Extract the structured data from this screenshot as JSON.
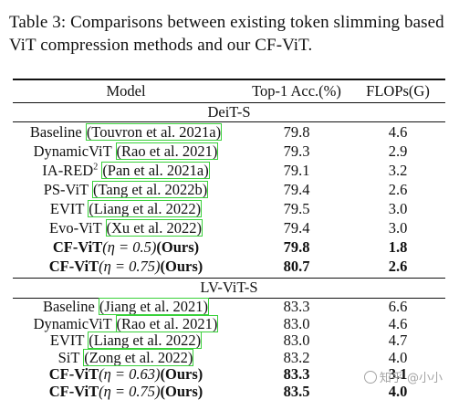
{
  "caption": "Table 3:  Comparisons between existing token slimming based ViT compression methods and our CF-ViT.",
  "headers": {
    "model": "Model",
    "acc": "Top-1 Acc.(%)",
    "flops": "FLOPs(G)"
  },
  "sections": {
    "deit": "DeiT-S",
    "lvvit": "LV-ViT-S"
  },
  "deit_rows": [
    {
      "pre": "Baseline ",
      "cite": "(Touvron et al. 2021a)",
      "post": "",
      "acc": "79.8",
      "flops": "4.6"
    },
    {
      "pre": "DynamicViT ",
      "cite": "(Rao et al. 2021)",
      "post": "",
      "acc": "79.3",
      "flops": "2.9"
    },
    {
      "pre": "IA-RED",
      "sup": "2",
      "pre2": " ",
      "cite": "(Pan et al. 2021a)",
      "post": "",
      "acc": "79.1",
      "flops": "3.2"
    },
    {
      "pre": "PS-ViT ",
      "cite": "(Tang et al. 2022b)",
      "post": "",
      "acc": "79.4",
      "flops": "2.6"
    },
    {
      "pre": "EVIT ",
      "cite": "(Liang et al. 2022)",
      "post": "",
      "acc": "79.5",
      "flops": "3.0"
    },
    {
      "pre": "Evo-ViT ",
      "cite": "(Xu et al. 2022)",
      "post": "",
      "acc": "79.4",
      "flops": "3.0"
    }
  ],
  "deit_ours": [
    {
      "name": "CF-ViT",
      "eq": "(η = 0.5)",
      "tag": "(Ours)",
      "acc": "79.8",
      "flops": "1.8"
    },
    {
      "name": "CF-ViT",
      "eq": "(η = 0.75)",
      "tag": "(Ours)",
      "acc": "80.7",
      "flops": "2.6"
    }
  ],
  "lv_rows": [
    {
      "pre": "Baseline ",
      "cite": "(Jiang et al. 2021)",
      "acc": "83.3",
      "flops": "6.6"
    },
    {
      "pre": "DynamicViT ",
      "cite": "(Rao et al. 2021)",
      "acc": "83.0",
      "flops": "4.6"
    },
    {
      "pre": "EVIT ",
      "cite": "(Liang et al. 2022)",
      "acc": "83.0",
      "flops": "4.7"
    },
    {
      "pre": "SiT ",
      "cite": "(Zong et al. 2022)",
      "acc": "83.2",
      "flops": "4.0"
    }
  ],
  "lv_ours": [
    {
      "name": "CF-ViT",
      "eq": "(η = 0.63)",
      "tag": "(Ours)",
      "acc": "83.3",
      "flops": "3.1"
    },
    {
      "name": "CF-ViT",
      "eq": "(η = 0.75)",
      "tag": "(Ours)",
      "acc": "83.5",
      "flops": "4.0"
    }
  ],
  "watermark": "知乎 @小小",
  "colors": {
    "citation_box": "#39d13a",
    "text": "#111111"
  }
}
